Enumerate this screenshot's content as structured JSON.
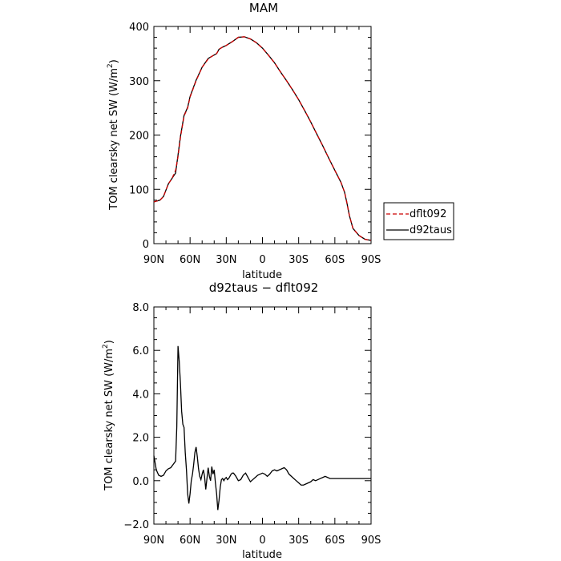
{
  "chart_data": [
    {
      "type": "line",
      "title": "MAM",
      "xlabel": "latitude",
      "ylabel": "TOM clearsky net SW (W/m",
      "ylabel_sup": "2",
      "ylabel_close": ")",
      "xlim": [
        90,
        -90
      ],
      "ylim": [
        0,
        400
      ],
      "xticks": [
        90,
        60,
        30,
        0,
        -30,
        -60,
        -90
      ],
      "xtick_labels": [
        "90N",
        "60N",
        "30N",
        "0",
        "30S",
        "60S",
        "90S"
      ],
      "yticks": [
        0,
        100,
        200,
        300,
        400
      ],
      "ytick_labels": [
        "0",
        "100",
        "200",
        "300",
        "400"
      ],
      "grid": false,
      "legend_position": "right",
      "series": [
        {
          "name": "dflt092",
          "color": "#cc0000",
          "dash": "dashed",
          "x": [
            90,
            85,
            82,
            78,
            75,
            72,
            70,
            68,
            65,
            62,
            60,
            55,
            50,
            45,
            42,
            38,
            36,
            33,
            30,
            25,
            20,
            15,
            10,
            5,
            0,
            -5,
            -10,
            -15,
            -20,
            -25,
            -30,
            -35,
            -40,
            -45,
            -50,
            -55,
            -60,
            -65,
            -68,
            -70,
            -72,
            -75,
            -80,
            -85,
            -90
          ],
          "y": [
            77,
            80,
            87,
            110,
            120,
            135,
            160,
            195,
            235,
            250,
            270,
            300,
            325,
            340,
            345,
            350,
            358,
            362,
            365,
            372,
            380,
            381,
            377,
            370,
            360,
            347,
            333,
            316,
            300,
            283,
            265,
            245,
            224,
            202,
            180,
            157,
            135,
            113,
            95,
            75,
            52,
            28,
            15,
            8,
            6
          ]
        },
        {
          "name": "d92taus",
          "color": "#000000",
          "dash": "solid",
          "x": [
            90,
            85,
            82,
            78,
            75,
            72,
            70,
            68,
            65,
            62,
            60,
            55,
            50,
            45,
            42,
            38,
            36,
            33,
            30,
            25,
            20,
            15,
            10,
            5,
            0,
            -5,
            -10,
            -15,
            -20,
            -25,
            -30,
            -35,
            -40,
            -45,
            -50,
            -55,
            -60,
            -65,
            -68,
            -70,
            -72,
            -75,
            -80,
            -85,
            -90
          ],
          "y": [
            77,
            80,
            87,
            110,
            120,
            130,
            163,
            197,
            236,
            251,
            271,
            301,
            325,
            341,
            345,
            350,
            358,
            362,
            365,
            372,
            380,
            381,
            377,
            370,
            360,
            347,
            333,
            316,
            300,
            283,
            265,
            245,
            224,
            202,
            180,
            157,
            135,
            113,
            95,
            75,
            52,
            28,
            15,
            8,
            6
          ]
        }
      ]
    },
    {
      "type": "line",
      "title": "d92taus − dflt092",
      "xlabel": "latitude",
      "ylabel": "TOM clearsky net SW (W/m",
      "ylabel_sup": "2",
      "ylabel_close": ")",
      "xlim": [
        90,
        -90
      ],
      "ylim": [
        -2,
        8
      ],
      "xticks": [
        90,
        60,
        30,
        0,
        -30,
        -60,
        -90
      ],
      "xtick_labels": [
        "90N",
        "60N",
        "30N",
        "0",
        "30S",
        "60S",
        "90S"
      ],
      "yticks": [
        -2,
        0,
        2,
        4,
        6,
        8
      ],
      "ytick_labels": [
        "−2.0",
        "0.0",
        "2.0",
        "4.0",
        "6.0",
        "8.0"
      ],
      "grid": false,
      "series": [
        {
          "color": "#000000",
          "dash": "solid",
          "x": [
            90,
            88,
            86,
            84,
            82,
            80,
            78,
            76,
            74,
            72,
            71,
            70,
            69,
            68,
            67,
            66,
            65,
            64,
            63,
            62,
            61,
            60,
            59,
            58,
            57,
            56,
            55,
            54,
            53,
            52,
            51,
            50,
            49,
            48,
            47,
            46,
            45,
            44,
            43,
            42,
            41,
            40,
            39,
            38,
            37,
            36,
            35,
            34,
            33,
            32,
            31,
            30,
            29,
            28,
            27,
            26,
            25,
            24,
            22,
            20,
            18,
            16,
            14,
            12,
            10,
            8,
            6,
            4,
            2,
            0,
            -2,
            -4,
            -6,
            -8,
            -10,
            -12,
            -14,
            -16,
            -18,
            -20,
            -22,
            -24,
            -26,
            -28,
            -30,
            -32,
            -34,
            -36,
            -38,
            -40,
            -42,
            -44,
            -46,
            -48,
            -50,
            -52,
            -54,
            -56,
            -58,
            -60,
            -62,
            -64,
            -66,
            -68,
            -70,
            -72,
            -74,
            -76,
            -78,
            -80,
            -82,
            -84,
            -86,
            -88,
            -90
          ],
          "y": [
            1.15,
            0.5,
            0.25,
            0.2,
            0.25,
            0.45,
            0.55,
            0.6,
            0.75,
            0.9,
            2.5,
            6.2,
            5.5,
            4.5,
            3.2,
            2.6,
            2.45,
            1.3,
            0.5,
            -0.6,
            -1.05,
            -0.6,
            0.0,
            0.3,
            0.75,
            1.3,
            1.55,
            1.1,
            0.55,
            0.2,
            0.05,
            0.3,
            0.5,
            0.2,
            -0.4,
            0.1,
            0.6,
            0.2,
            0.0,
            0.65,
            0.3,
            0.5,
            -0.1,
            -0.6,
            -1.35,
            -0.9,
            -0.3,
            0.05,
            0.1,
            0.0,
            0.1,
            0.15,
            0.05,
            0.1,
            0.2,
            0.3,
            0.35,
            0.35,
            0.2,
            0.0,
            0.05,
            0.25,
            0.35,
            0.15,
            -0.05,
            0.05,
            0.15,
            0.25,
            0.3,
            0.35,
            0.3,
            0.2,
            0.3,
            0.45,
            0.5,
            0.45,
            0.5,
            0.55,
            0.6,
            0.5,
            0.3,
            0.2,
            0.1,
            0.0,
            -0.1,
            -0.2,
            -0.2,
            -0.15,
            -0.1,
            -0.05,
            0.05,
            0.0,
            0.05,
            0.1,
            0.15,
            0.2,
            0.15,
            0.1,
            0.1,
            0.1,
            0.1,
            0.1,
            0.1,
            0.1,
            0.1,
            0.1,
            0.1,
            0.1,
            0.1,
            0.1,
            0.1,
            0.1,
            0.1,
            0.1,
            0.1
          ]
        }
      ]
    }
  ]
}
